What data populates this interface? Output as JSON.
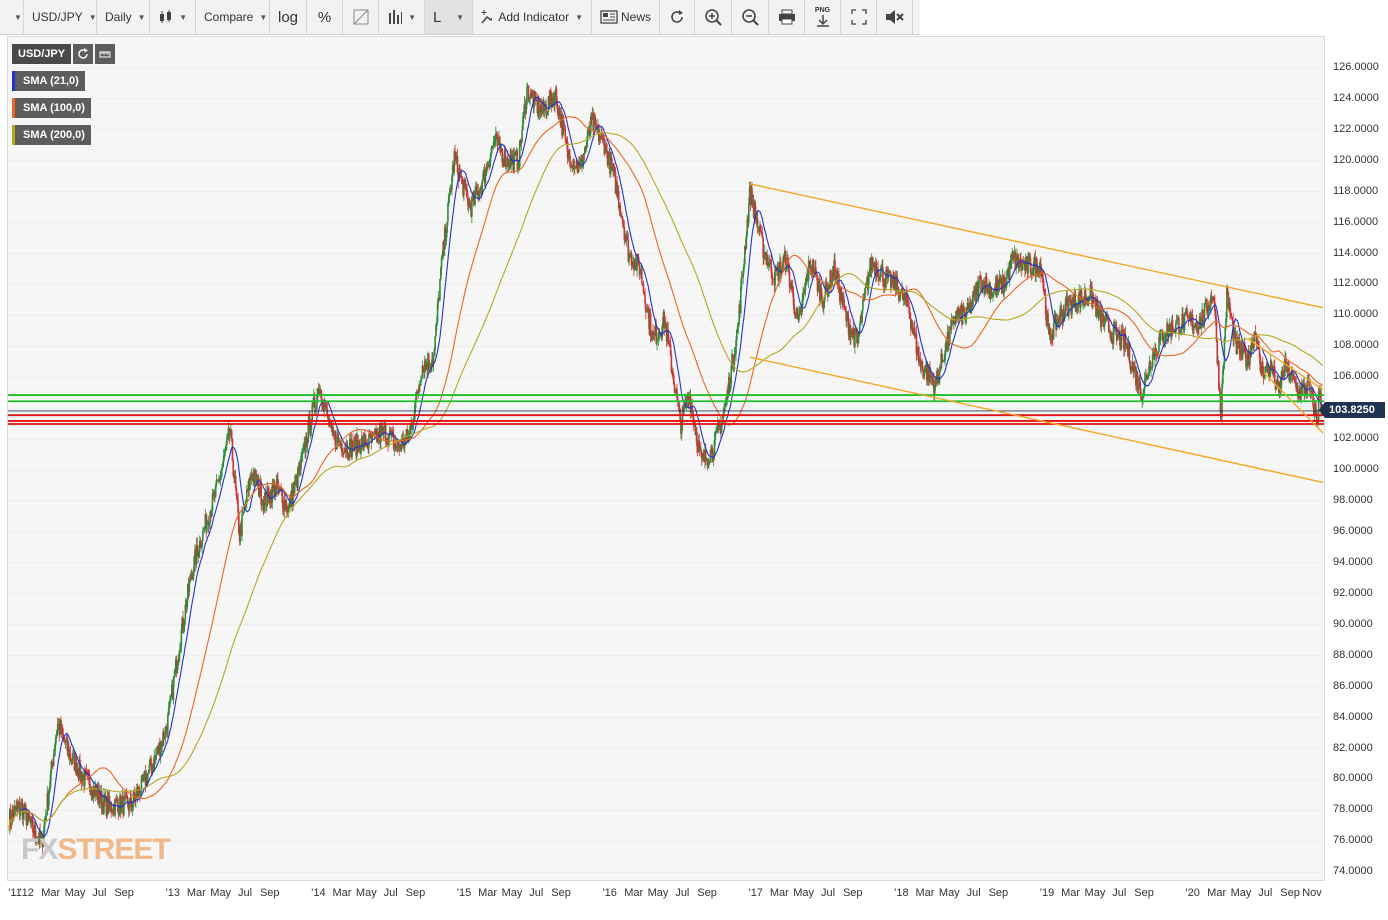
{
  "toolbar": {
    "symbol": "USD/JPY",
    "interval": "Daily",
    "compare": "Compare",
    "log": "log",
    "percent": "%",
    "line_type": "L",
    "add_indicator": "Add Indicator",
    "news": "News",
    "png": "PNG"
  },
  "legend": {
    "symbol": "USD/JPY",
    "sma21": "SMA (21,0)",
    "sma100": "SMA (100,0)",
    "sma200": "SMA (200,0)"
  },
  "colors": {
    "up_candle": "#2e8b3a",
    "down_candle": "#cc3333",
    "sma21": "#2233cc",
    "sma100": "#ee6622",
    "sma200": "#b5a825",
    "trendline": "#f5a623",
    "support": "#1fbf2a",
    "resistance": "#e01010",
    "price_tag": "#1f3350"
  },
  "logo": {
    "fx": "FX",
    "street": "STREET"
  },
  "price_tag": "103.8250",
  "chart_data": {
    "type": "candlestick",
    "symbol": "USD/JPY",
    "interval": "Daily",
    "ylim": [
      73.5,
      128.0
    ],
    "y_ticks": [
      "126.0000",
      "124.0000",
      "122.0000",
      "120.0000",
      "118.0000",
      "116.0000",
      "114.0000",
      "112.0000",
      "110.0000",
      "108.0000",
      "106.0000",
      "104.0000",
      "102.0000",
      "100.0000",
      "98.0000",
      "96.0000",
      "94.0000",
      "92.0000",
      "90.0000",
      "88.0000",
      "86.0000",
      "84.0000",
      "82.0000",
      "80.0000",
      "78.0000",
      "76.0000",
      "74.0000"
    ],
    "x_ticks": [
      "'11",
      "'12",
      "Mar",
      "May",
      "Jul",
      "Sep",
      "'13",
      "Mar",
      "May",
      "Jul",
      "Sep",
      "'14",
      "Mar",
      "May",
      "Jul",
      "Sep",
      "'15",
      "Mar",
      "May",
      "Jul",
      "Sep",
      "'16",
      "Mar",
      "May",
      "Jul",
      "Sep",
      "'17",
      "Mar",
      "May",
      "Jul",
      "Sep",
      "'18",
      "Mar",
      "May",
      "Jul",
      "Sep",
      "'19",
      "Mar",
      "May",
      "Jul",
      "Sep",
      "'20",
      "Mar",
      "May",
      "Jul",
      "Sep",
      "Nov"
    ],
    "x_range": [
      "2011-11-15",
      "2020-11-20"
    ],
    "last_price": 103.825,
    "close_path": [
      [
        "2011-11-15",
        77.0
      ],
      [
        "2011-12-15",
        77.8
      ],
      [
        "2012-01-15",
        76.8
      ],
      [
        "2012-02-05",
        76.3
      ],
      [
        "2012-03-01",
        81.2
      ],
      [
        "2012-03-15",
        83.8
      ],
      [
        "2012-04-15",
        81.2
      ],
      [
        "2012-05-15",
        79.8
      ],
      [
        "2012-06-15",
        79.5
      ],
      [
        "2012-07-15",
        78.8
      ],
      [
        "2012-08-15",
        78.6
      ],
      [
        "2012-09-15",
        77.9
      ],
      [
        "2012-10-15",
        79.2
      ],
      [
        "2012-11-15",
        81.5
      ],
      [
        "2012-12-15",
        84.0
      ],
      [
        "2013-01-15",
        89.0
      ],
      [
        "2013-02-15",
        93.0
      ],
      [
        "2013-03-15",
        95.5
      ],
      [
        "2013-04-15",
        98.5
      ],
      [
        "2013-05-22",
        103.0
      ],
      [
        "2013-06-15",
        96.0
      ],
      [
        "2013-07-15",
        99.5
      ],
      [
        "2013-08-15",
        97.5
      ],
      [
        "2013-09-15",
        99.0
      ],
      [
        "2013-10-15",
        98.0
      ],
      [
        "2013-11-15",
        100.5
      ],
      [
        "2013-12-31",
        105.0
      ],
      [
        "2014-02-01",
        102.0
      ],
      [
        "2014-03-15",
        102.0
      ],
      [
        "2014-04-15",
        102.0
      ],
      [
        "2014-05-15",
        101.5
      ],
      [
        "2014-06-15",
        102.0
      ],
      [
        "2014-07-15",
        101.5
      ],
      [
        "2014-08-15",
        102.8
      ],
      [
        "2014-09-15",
        107.0
      ],
      [
        "2014-10-15",
        107.0
      ],
      [
        "2014-10-31",
        112.0
      ],
      [
        "2014-12-05",
        120.0
      ],
      [
        "2015-01-15",
        117.5
      ],
      [
        "2015-02-15",
        119.0
      ],
      [
        "2015-03-15",
        121.0
      ],
      [
        "2015-04-15",
        119.5
      ],
      [
        "2015-05-15",
        120.0
      ],
      [
        "2015-06-05",
        125.0
      ],
      [
        "2015-07-15",
        123.5
      ],
      [
        "2015-08-15",
        124.0
      ],
      [
        "2015-09-15",
        120.0
      ],
      [
        "2015-10-15",
        119.5
      ],
      [
        "2015-11-15",
        123.0
      ],
      [
        "2015-12-15",
        121.5
      ],
      [
        "2016-01-15",
        118.0
      ],
      [
        "2016-02-15",
        113.5
      ],
      [
        "2016-03-15",
        113.0
      ],
      [
        "2016-04-15",
        109.0
      ],
      [
        "2016-05-15",
        110.0
      ],
      [
        "2016-06-24",
        102.5
      ],
      [
        "2016-07-15",
        104.5
      ],
      [
        "2016-08-15",
        100.5
      ],
      [
        "2016-09-15",
        102.0
      ],
      [
        "2016-10-15",
        104.5
      ],
      [
        "2016-11-15",
        109.0
      ],
      [
        "2016-12-15",
        117.5
      ],
      [
        "2017-01-15",
        114.5
      ],
      [
        "2017-02-15",
        113.0
      ],
      [
        "2017-03-15",
        114.0
      ],
      [
        "2017-04-15",
        109.0
      ],
      [
        "2017-05-15",
        113.0
      ],
      [
        "2017-06-15",
        111.0
      ],
      [
        "2017-07-15",
        113.5
      ],
      [
        "2017-08-15",
        110.0
      ],
      [
        "2017-09-10",
        108.0
      ],
      [
        "2017-10-15",
        113.0
      ],
      [
        "2017-11-15",
        112.5
      ],
      [
        "2017-12-15",
        112.5
      ],
      [
        "2018-01-15",
        111.0
      ],
      [
        "2018-02-15",
        106.5
      ],
      [
        "2018-03-25",
        105.0
      ],
      [
        "2018-04-15",
        107.5
      ],
      [
        "2018-05-15",
        110.5
      ],
      [
        "2018-06-15",
        110.5
      ],
      [
        "2018-07-15",
        112.0
      ],
      [
        "2018-08-15",
        111.0
      ],
      [
        "2018-09-15",
        112.0
      ],
      [
        "2018-10-05",
        114.0
      ],
      [
        "2018-11-15",
        113.5
      ],
      [
        "2018-12-15",
        113.0
      ],
      [
        "2019-01-03",
        108.0
      ],
      [
        "2019-02-15",
        110.5
      ],
      [
        "2019-03-15",
        111.5
      ],
      [
        "2019-04-15",
        111.8
      ],
      [
        "2019-05-15",
        109.5
      ],
      [
        "2019-06-15",
        108.2
      ],
      [
        "2019-07-15",
        108.0
      ],
      [
        "2019-08-25",
        105.5
      ],
      [
        "2019-09-15",
        107.5
      ],
      [
        "2019-10-15",
        108.5
      ],
      [
        "2019-11-15",
        108.8
      ],
      [
        "2019-12-15",
        109.5
      ],
      [
        "2020-01-15",
        110.0
      ],
      [
        "2020-02-20",
        111.8
      ],
      [
        "2020-03-09",
        103.5
      ],
      [
        "2020-03-24",
        111.0
      ],
      [
        "2020-04-15",
        107.5
      ],
      [
        "2020-05-15",
        107.0
      ],
      [
        "2020-06-05",
        109.5
      ],
      [
        "2020-06-15",
        107.0
      ],
      [
        "2020-07-15",
        107.0
      ],
      [
        "2020-07-31",
        105.0
      ],
      [
        "2020-08-15",
        106.5
      ],
      [
        "2020-09-21",
        104.5
      ],
      [
        "2020-10-15",
        105.3
      ],
      [
        "2020-11-06",
        103.5
      ],
      [
        "2020-11-10",
        105.5
      ],
      [
        "2020-11-20",
        103.825
      ]
    ],
    "sma_periods": [
      21,
      100,
      200
    ],
    "trendlines": [
      {
        "from": [
          "2016-12-15",
          118.5
        ],
        "to": [
          "2020-11-20",
          110.5
        ]
      },
      {
        "from": [
          "2016-12-15",
          107.3
        ],
        "to": [
          "2020-11-20",
          99.2
        ]
      },
      {
        "from": [
          "2020-05-15",
          108.5
        ],
        "to": [
          "2020-11-20",
          105.2
        ]
      },
      {
        "from": [
          "2020-06-25",
          106.3
        ],
        "to": [
          "2020-11-20",
          102.4
        ]
      }
    ],
    "horizontal_levels": [
      {
        "value": 104.85,
        "kind": "support"
      },
      {
        "value": 104.45,
        "kind": "support"
      },
      {
        "value": 103.55,
        "kind": "resistance"
      },
      {
        "value": 103.18,
        "kind": "resistance"
      },
      {
        "value": 102.98,
        "kind": "resistance"
      }
    ]
  }
}
